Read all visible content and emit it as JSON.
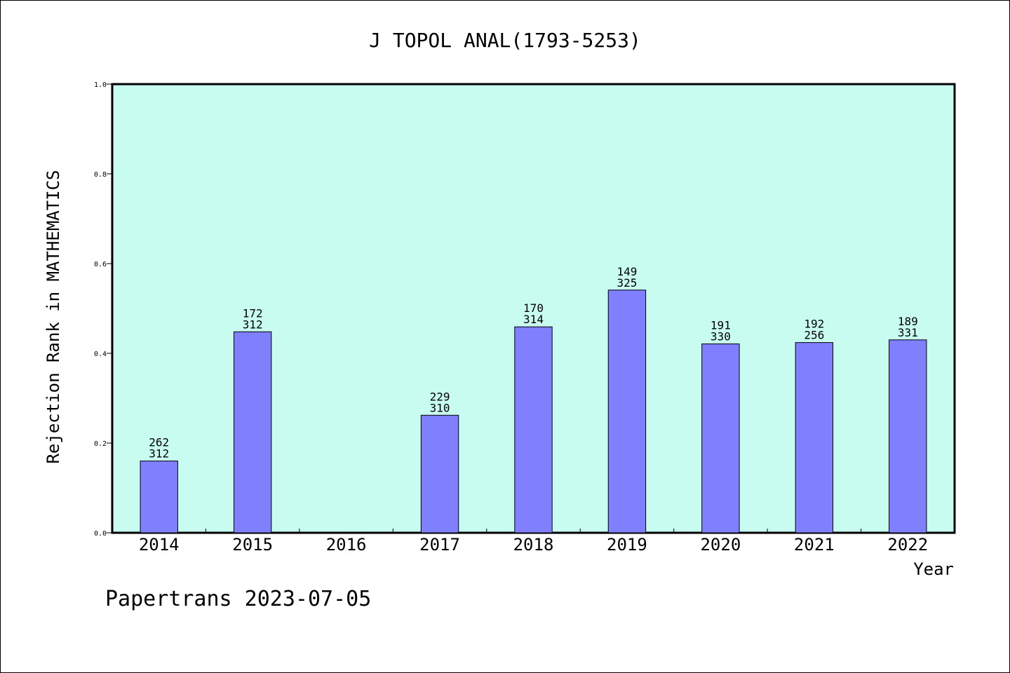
{
  "chart_data": {
    "type": "bar",
    "title": "J TOPOL ANAL(1793-5253)",
    "xlabel": "Year",
    "ylabel": "Rejection Rank in MATHEMATICS",
    "footer": "Papertrans 2023-07-05",
    "ylim": [
      0,
      1.0
    ],
    "yticks": [
      "0.0",
      "0.2",
      "0.4",
      "0.6",
      "0.8",
      "1.0"
    ],
    "categories": [
      "2014",
      "2015",
      "2016",
      "2017",
      "2018",
      "2019",
      "2020",
      "2021",
      "2022"
    ],
    "values": [
      0.16,
      0.448,
      null,
      0.262,
      0.459,
      0.541,
      0.421,
      0.424,
      0.43
    ],
    "label_top": [
      "262",
      "172",
      "",
      "229",
      "170",
      "149",
      "191",
      "192",
      "189"
    ],
    "label_bottom": [
      "312",
      "312",
      "",
      "310",
      "314",
      "325",
      "330",
      "256",
      "331"
    ],
    "grid": false,
    "colors": {
      "plot_background": "#c8fcf0",
      "bar_fill": "#8080ff",
      "bar_stroke": "#000000",
      "axis": "#000000"
    }
  }
}
